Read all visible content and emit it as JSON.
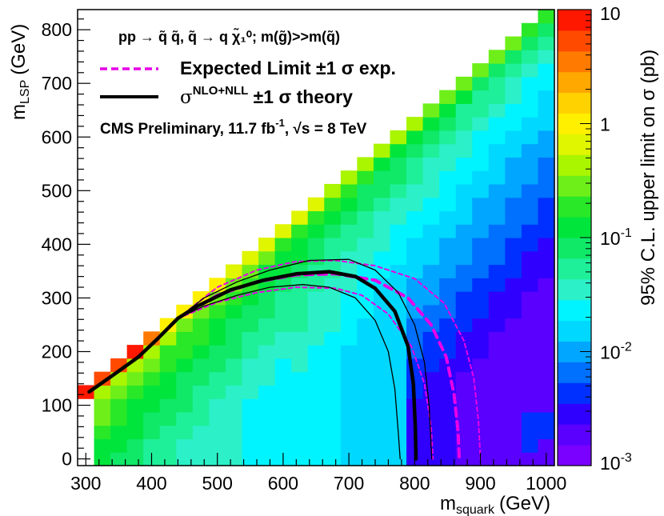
{
  "chart_data": {
    "type": "heatmap",
    "x_label_base": "m",
    "x_label_sub": "squark",
    "x_label_unit": "(GeV)",
    "y_label_base": "m",
    "y_label_sub": "LSP",
    "y_label_unit": "(GeV)",
    "z_label": "95% C.L. upper limit on σ (pb)",
    "xlim": [
      287.5,
      1012.5
    ],
    "ylim": [
      -12.5,
      837.5
    ],
    "x_ticks": [
      "300",
      "400",
      "500",
      "600",
      "700",
      "800",
      "900",
      "1000"
    ],
    "y_ticks": [
      "0",
      "100",
      "200",
      "300",
      "400",
      "500",
      "600",
      "700",
      "800"
    ],
    "z_range_pb": [
      0.001,
      10
    ],
    "z_ticks": [
      {
        "value": 10,
        "base": "10",
        "exp": ""
      },
      {
        "value": 1,
        "base": "1",
        "exp": ""
      },
      {
        "value": 0.1,
        "base": "10",
        "exp": "-1"
      },
      {
        "value": 0.01,
        "base": "10",
        "exp": "-2"
      },
      {
        "value": 0.001,
        "base": "10",
        "exp": "-3"
      }
    ],
    "grid": {
      "x_start": 300,
      "y_start": 0,
      "step": 25,
      "max_dm_lsp": 175,
      "cut_y_below": 125
    },
    "limit_model": {
      "near_diag_log10": [
        0.15,
        -0.3,
        -0.5,
        -0.6,
        -0.75,
        -0.85,
        -0.9,
        -1.0
      ],
      "decay_per_25GeV": 0.065,
      "mid_bonus": 0.35,
      "floor_log10": -1.95,
      "special_cells": [
        {
          "m_squark": 300,
          "m_lsp": 125,
          "log10": 0.9
        },
        {
          "m_squark": 325,
          "m_lsp": 150,
          "log10": 0.8
        },
        {
          "m_squark": 350,
          "m_lsp": 175,
          "log10": 0.7
        },
        {
          "m_squark": 375,
          "m_lsp": 200,
          "log10": 0.9
        },
        {
          "m_squark": 400,
          "m_lsp": 225,
          "log10": 0.6
        },
        {
          "m_squark": 975,
          "m_lsp": 75,
          "log10": -2.35
        },
        {
          "m_squark": 975,
          "m_lsp": 50,
          "log10": -2.35
        },
        {
          "m_squark": 975,
          "m_lsp": 25,
          "log10": -2.3
        },
        {
          "m_squark": 1000,
          "m_lsp": 75,
          "log10": -2.35
        },
        {
          "m_squark": 1000,
          "m_lsp": 50,
          "log10": -2.35
        }
      ]
    },
    "series": [
      {
        "name": "Expected Limit",
        "role": "expected",
        "style": "dashed-thick",
        "color": "#e800e8",
        "points": [
          [
            440,
            262
          ],
          [
            500,
            305
          ],
          [
            560,
            330
          ],
          [
            620,
            343
          ],
          [
            680,
            345
          ],
          [
            740,
            333
          ],
          [
            790,
            300
          ],
          [
            825,
            250
          ],
          [
            848,
            190
          ],
          [
            860,
            120
          ],
          [
            866,
            50
          ],
          [
            868,
            0
          ]
        ]
      },
      {
        "name": "Expected +1 sigma",
        "role": "expected-plus",
        "style": "dashed-thin",
        "color": "#e800e8",
        "points": [
          [
            440,
            262
          ],
          [
            500,
            320
          ],
          [
            560,
            352
          ],
          [
            620,
            368
          ],
          [
            680,
            370
          ],
          [
            740,
            360
          ],
          [
            800,
            336
          ],
          [
            845,
            290
          ],
          [
            875,
            220
          ],
          [
            890,
            150
          ],
          [
            897,
            70
          ],
          [
            900,
            0
          ]
        ]
      },
      {
        "name": "Expected -1 sigma",
        "role": "expected-minus",
        "style": "dashed-thin",
        "color": "#e800e8",
        "points": [
          [
            440,
            262
          ],
          [
            500,
            292
          ],
          [
            560,
            310
          ],
          [
            620,
            320
          ],
          [
            680,
            318
          ],
          [
            720,
            305
          ],
          [
            760,
            270
          ],
          [
            795,
            210
          ],
          [
            815,
            140
          ],
          [
            825,
            60
          ],
          [
            828,
            0
          ]
        ]
      },
      {
        "name": "Observed",
        "role": "observed",
        "style": "solid-thick",
        "color": "#000000",
        "points": [
          [
            305,
            125
          ],
          [
            340,
            155
          ],
          [
            380,
            190
          ],
          [
            410,
            225
          ],
          [
            440,
            262
          ],
          [
            470,
            285
          ],
          [
            520,
            315
          ],
          [
            570,
            333
          ],
          [
            620,
            345
          ],
          [
            670,
            349
          ],
          [
            710,
            340
          ],
          [
            740,
            318
          ],
          [
            770,
            275
          ],
          [
            790,
            210
          ],
          [
            798,
            140
          ],
          [
            801,
            60
          ],
          [
            802,
            0
          ]
        ]
      },
      {
        "name": "Observed +1 sigma theory",
        "role": "observed-plus",
        "style": "solid-thin",
        "color": "#000000",
        "points": [
          [
            440,
            262
          ],
          [
            480,
            300
          ],
          [
            530,
            330
          ],
          [
            580,
            352
          ],
          [
            640,
            370
          ],
          [
            700,
            372
          ],
          [
            740,
            352
          ],
          [
            775,
            310
          ],
          [
            800,
            250
          ],
          [
            815,
            180
          ],
          [
            822,
            100
          ],
          [
            826,
            0
          ]
        ]
      },
      {
        "name": "Observed -1 sigma theory",
        "role": "observed-minus",
        "style": "solid-thin",
        "color": "#000000",
        "points": [
          [
            440,
            262
          ],
          [
            480,
            285
          ],
          [
            530,
            305
          ],
          [
            580,
            320
          ],
          [
            630,
            325
          ],
          [
            670,
            320
          ],
          [
            710,
            300
          ],
          [
            740,
            258
          ],
          [
            760,
            200
          ],
          [
            770,
            130
          ],
          [
            775,
            50
          ],
          [
            778,
            0
          ]
        ]
      }
    ],
    "legend": {
      "process_line": "pp → q̃ q̃, q̃ → q χ̃₁⁰; m(g̃)>>m(q̃)",
      "expected_text": "Expected Limit ±1 σ exp.",
      "theory_base": "σ",
      "theory_sup": "NLO+NLL",
      "theory_rest": " ±1 σ theory",
      "cms_pre": "CMS Preliminary, 11.7 fb",
      "cms_sup": "-1",
      "cms_mid": ", ",
      "cms_sqrt": "√s",
      "cms_post": " = 8 TeV"
    }
  }
}
